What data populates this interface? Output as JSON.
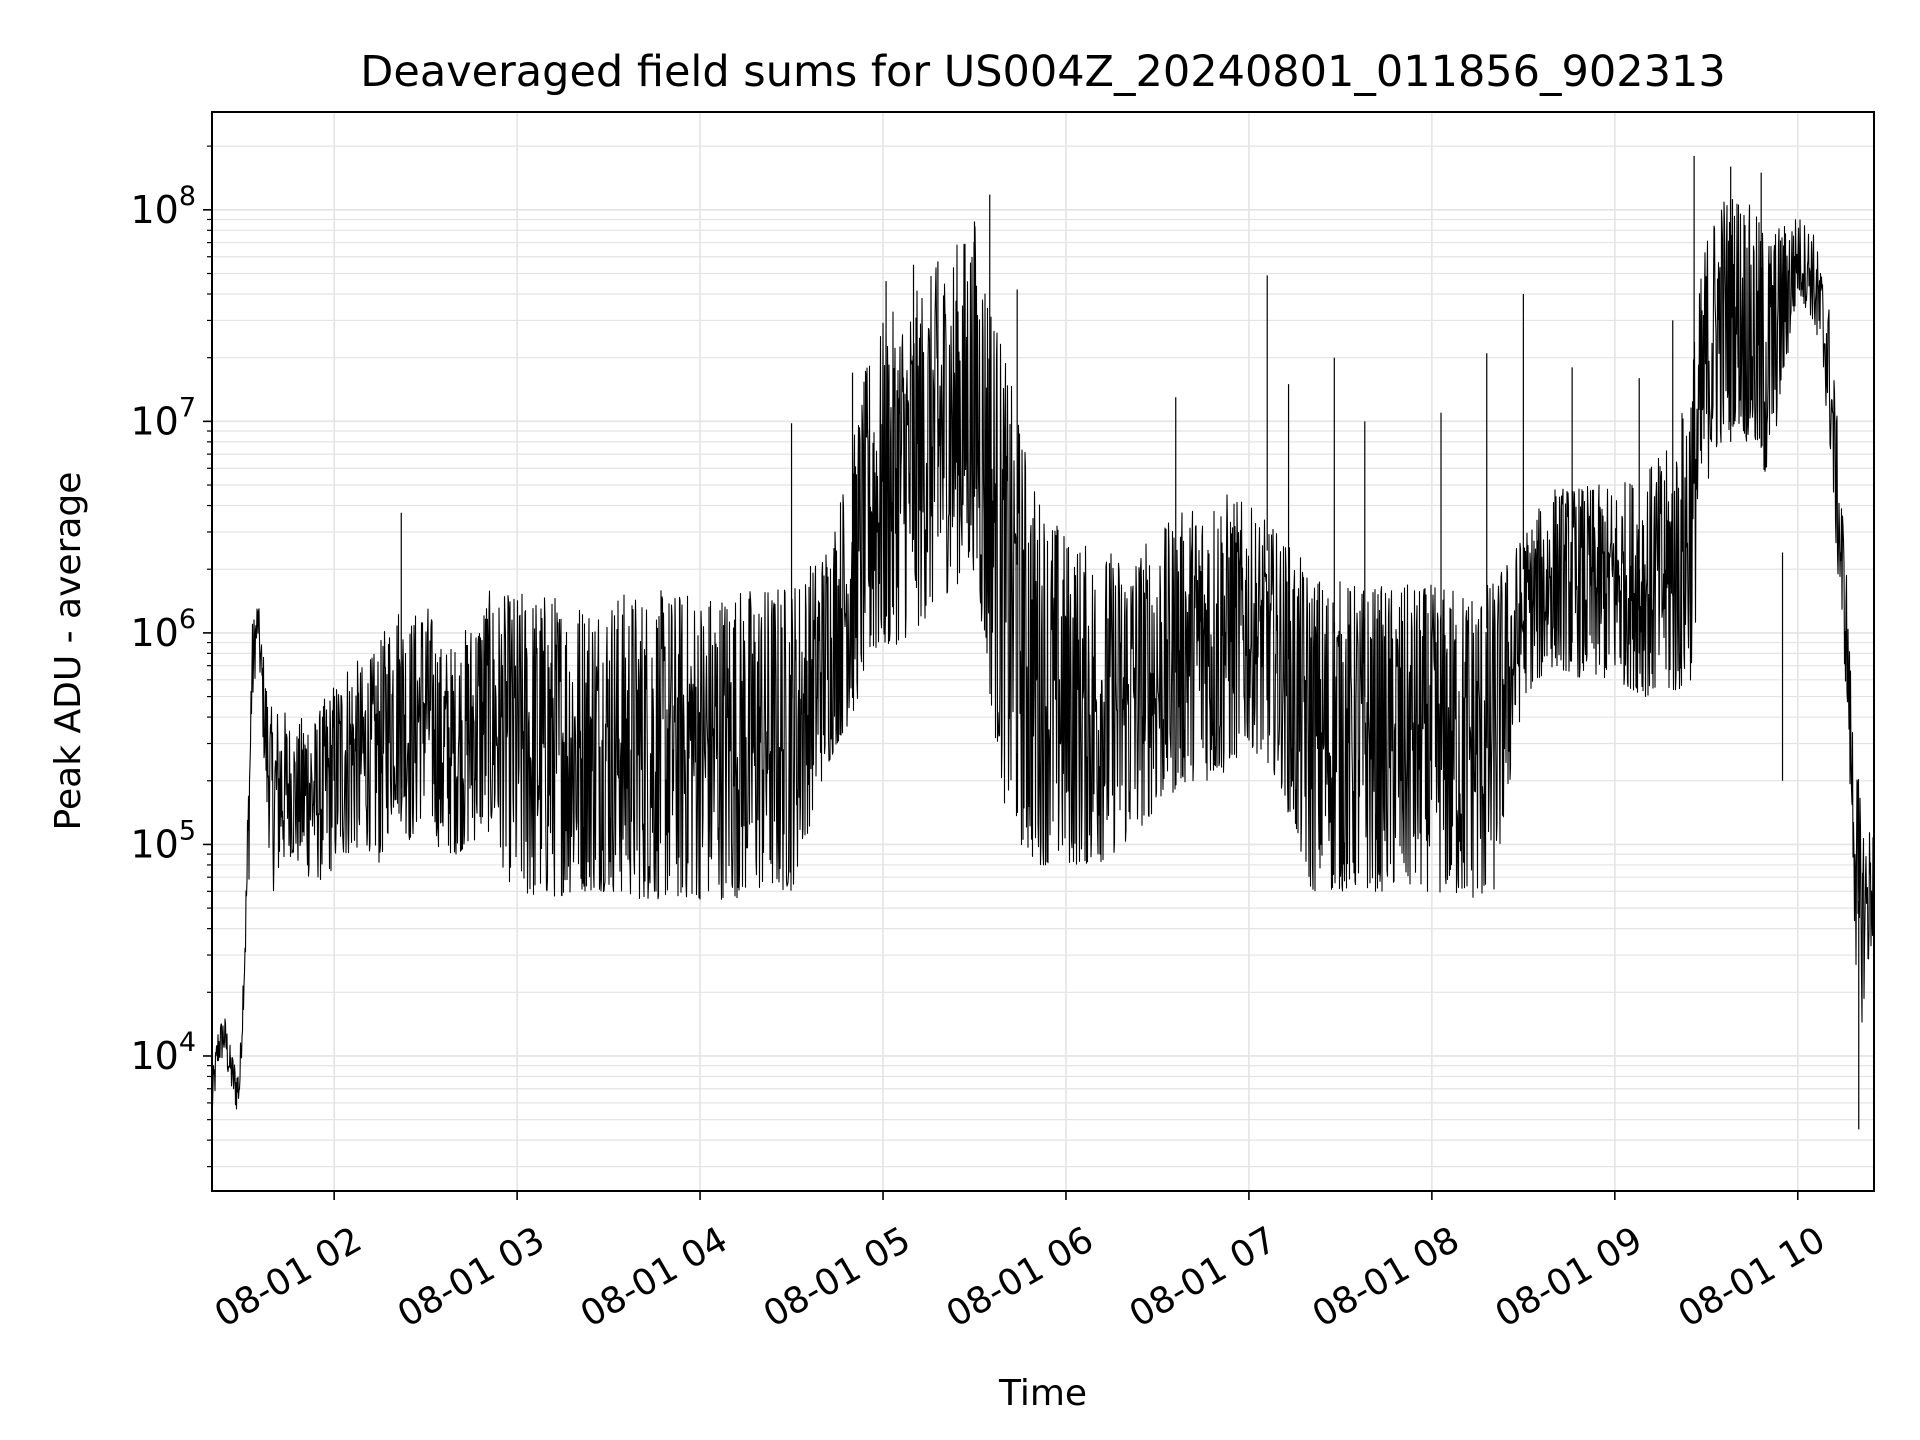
{
  "chart_data": {
    "type": "line",
    "title": "Deaveraged field sums for US004Z_20240801_011856_902313",
    "xlabel": "Time",
    "ylabel": "Peak ADU - average",
    "yscale": "log",
    "ylim": [
      2300,
      290000000
    ],
    "xlim": [
      "2024-08-01 01:19:56",
      "2024-08-01 10:25:00"
    ],
    "grid": true,
    "line_color": "#000000",
    "grid_color": "#e4e4e4",
    "x_ticks": [
      "08-01 02",
      "08-01 03",
      "08-01 04",
      "08-01 05",
      "08-01 06",
      "08-01 07",
      "08-01 08",
      "08-01 09",
      "08-01 10"
    ],
    "y_ticks": [
      {
        "base": "10",
        "exp": "4"
      },
      {
        "base": "10",
        "exp": "5"
      },
      {
        "base": "10",
        "exp": "6"
      },
      {
        "base": "10",
        "exp": "7"
      },
      {
        "base": "10",
        "exp": "8"
      }
    ],
    "series": [
      {
        "x": [
          "01:20",
          "01:22",
          "01:24",
          "01:26",
          "01:28",
          "01:29",
          "01:31",
          "01:32",
          "01:33",
          "01:35",
          "01:36",
          "01:38",
          "01:40",
          "01:42",
          "01:45",
          "01:48",
          "01:51",
          "01:54",
          "01:57",
          "02:00",
          "02:05",
          "02:10",
          "02:15",
          "02:20",
          "02:25",
          "02:30",
          "02:35",
          "02:40",
          "02:45",
          "02:50",
          "02:55",
          "03:00",
          "03:10",
          "03:20",
          "03:30",
          "03:40",
          "03:50",
          "04:00",
          "04:10",
          "04:20",
          "04:30",
          "04:40",
          "04:45",
          "04:50",
          "04:55",
          "05:00",
          "05:10",
          "05:20",
          "05:30",
          "05:35",
          "05:40",
          "05:45",
          "05:50",
          "06:00",
          "06:10",
          "06:20",
          "06:30",
          "06:40",
          "06:50",
          "07:00",
          "07:10",
          "07:20",
          "07:30",
          "07:40",
          "07:50",
          "08:00",
          "08:10",
          "08:20",
          "08:30",
          "08:40",
          "08:50",
          "09:00",
          "09:10",
          "09:20",
          "09:25",
          "09:30",
          "09:35",
          "09:40",
          "09:50",
          "10:00",
          "10:05",
          "10:10",
          "10:13",
          "10:16",
          "10:18",
          "10:20",
          "10:22",
          "10:25"
        ],
        "low": [
          5000,
          9000,
          10000,
          7000,
          5500,
          6000,
          30000,
          60000,
          400000,
          900000,
          500000,
          120000,
          60000,
          70000,
          90000,
          80000,
          70000,
          70000,
          65000,
          80000,
          90000,
          100000,
          80000,
          150000,
          100000,
          150000,
          90000,
          90000,
          100000,
          120000,
          80000,
          55000,
          55000,
          60000,
          60000,
          55000,
          55000,
          55000,
          55000,
          60000,
          60000,
          200000,
          300000,
          400000,
          700000,
          800000,
          1000000,
          1500000,
          2000000,
          500000,
          150000,
          100000,
          80000,
          80000,
          80000,
          100000,
          150000,
          200000,
          200000,
          300000,
          200000,
          60000,
          60000,
          60000,
          60000,
          60000,
          55000,
          55000,
          500000,
          700000,
          600000,
          600000,
          500000,
          500000,
          600000,
          5000000,
          8000000,
          10000000,
          5000000,
          40000000,
          30000000,
          10000000,
          2000000,
          500000,
          80000,
          10000,
          20000,
          40000
        ],
        "high": [
          8000,
          14000,
          16000,
          11000,
          9000,
          9000,
          60000,
          300000,
          1100000,
          1500000,
          1000000,
          600000,
          400000,
          500000,
          400000,
          350000,
          500000,
          400000,
          500000,
          600000,
          800000,
          700000,
          900000,
          1500000,
          1200000,
          1500000,
          900000,
          900000,
          1200000,
          1600000,
          1500000,
          1600000,
          1600000,
          1500000,
          1600000,
          1600000,
          1600000,
          1600000,
          1700000,
          1700000,
          1800000,
          2500000,
          4000000,
          8000000,
          20000000,
          30000000,
          40000000,
          60000000,
          90000000,
          50000000,
          20000000,
          10000000,
          5000000,
          3000000,
          2500000,
          2500000,
          3000000,
          4000000,
          5000000,
          4000000,
          3000000,
          2000000,
          1800000,
          1700000,
          1700000,
          1700000,
          1700000,
          1800000,
          3000000,
          5000000,
          5000000,
          5000000,
          6000000,
          8000000,
          20000000,
          80000000,
          120000000,
          130000000,
          80000000,
          95000000,
          80000000,
          40000000,
          10000000,
          2000000,
          400000,
          200000,
          120000,
          130000
        ]
      }
    ],
    "spikes": [
      {
        "x": "02:22",
        "y": 3700000
      },
      {
        "x": "04:30",
        "y": 9800000
      },
      {
        "x": "04:50",
        "y": 17000000
      },
      {
        "x": "05:01",
        "y": 46000000
      },
      {
        "x": "05:10",
        "y": 55000000
      },
      {
        "x": "05:18",
        "y": 57000000
      },
      {
        "x": "05:30",
        "y": 88000000
      },
      {
        "x": "05:35",
        "y": 118000000
      },
      {
        "x": "05:44",
        "y": 42000000
      },
      {
        "x": "06:36",
        "y": 13000000
      },
      {
        "x": "07:06",
        "y": 49000000
      },
      {
        "x": "07:13",
        "y": 15000000
      },
      {
        "x": "07:28",
        "y": 20000000
      },
      {
        "x": "07:38",
        "y": 10000000
      },
      {
        "x": "08:03",
        "y": 11000000
      },
      {
        "x": "08:18",
        "y": 21000000
      },
      {
        "x": "08:30",
        "y": 40000000
      },
      {
        "x": "08:46",
        "y": 18000000
      },
      {
        "x": "09:08",
        "y": 16000000
      },
      {
        "x": "09:19",
        "y": 30000000
      },
      {
        "x": "09:26",
        "y": 180000000
      },
      {
        "x": "09:38",
        "y": 160000000
      },
      {
        "x": "09:48",
        "y": 150000000
      },
      {
        "x": "09:55",
        "y": 200000
      },
      {
        "x": "10:20",
        "y": 4500
      }
    ]
  }
}
